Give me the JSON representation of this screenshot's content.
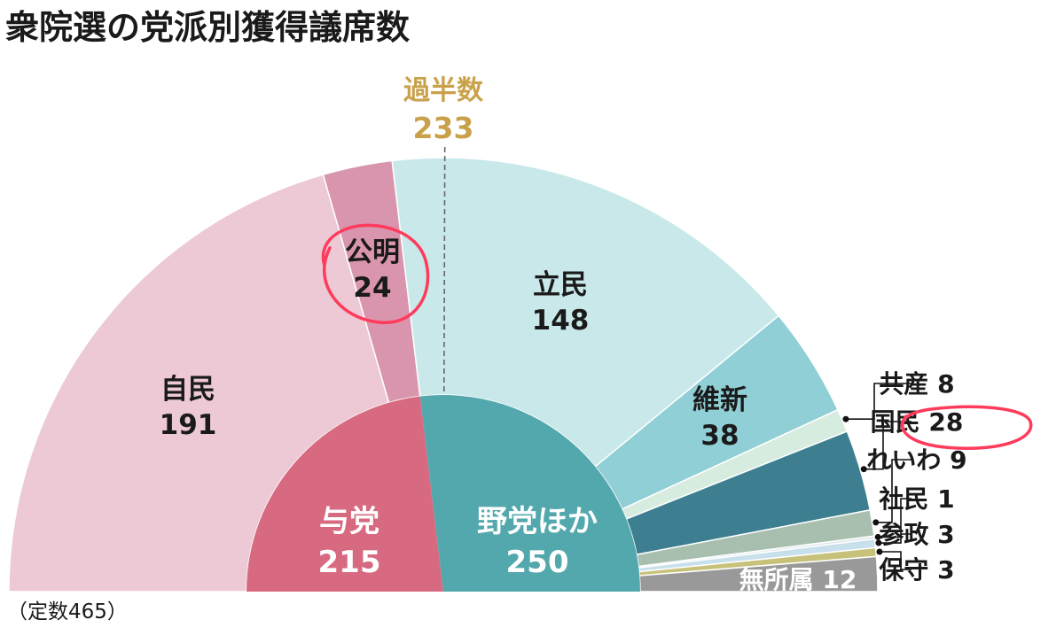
{
  "title": "衆院選の党派別獲得議席数",
  "note": "（定数465）",
  "majority": {
    "label": "過半数",
    "value": "233"
  },
  "colors": {
    "majority": "#c9a14a",
    "jimin": "#ecc9d5",
    "komei": "#d995ad",
    "rikken": "#c8e8ea",
    "ishin": "#8fcfd5",
    "kyosan": "#d6ecdf",
    "kokumin": "#3d7f90",
    "reiwa": "#a8bfb0",
    "shamin": "#e0e7ea",
    "sansei": "#c8e0ec",
    "hoshu": "#c7c17a",
    "mushozoku": "#999999",
    "yoto": "#d76a80",
    "yato": "#53a8ad",
    "annotation": "#ff3b5c"
  },
  "chart_data": {
    "type": "pie",
    "subtype": "half-donut (parliament)",
    "total": 465,
    "outer_ring": [
      {
        "name": "自民",
        "value": 191,
        "color_key": "jimin"
      },
      {
        "name": "公明",
        "value": 24,
        "color_key": "komei"
      },
      {
        "name": "立民",
        "value": 148,
        "color_key": "rikken"
      },
      {
        "name": "維新",
        "value": 38,
        "color_key": "ishin"
      },
      {
        "name": "共産",
        "value": 8,
        "color_key": "kyosan"
      },
      {
        "name": "国民",
        "value": 28,
        "color_key": "kokumin"
      },
      {
        "name": "れいわ",
        "value": 9,
        "color_key": "reiwa"
      },
      {
        "name": "社民",
        "value": 1,
        "color_key": "shamin"
      },
      {
        "name": "参政",
        "value": 3,
        "color_key": "sansei"
      },
      {
        "name": "保守",
        "value": 3,
        "color_key": "hoshu"
      },
      {
        "name": "無所属",
        "value": 12,
        "color_key": "mushozoku"
      }
    ],
    "inner_ring": [
      {
        "name": "与党",
        "value": 215,
        "color_key": "yoto"
      },
      {
        "name": "野党ほか",
        "value": 250,
        "color_key": "yato"
      }
    ],
    "majority_line": 233
  }
}
